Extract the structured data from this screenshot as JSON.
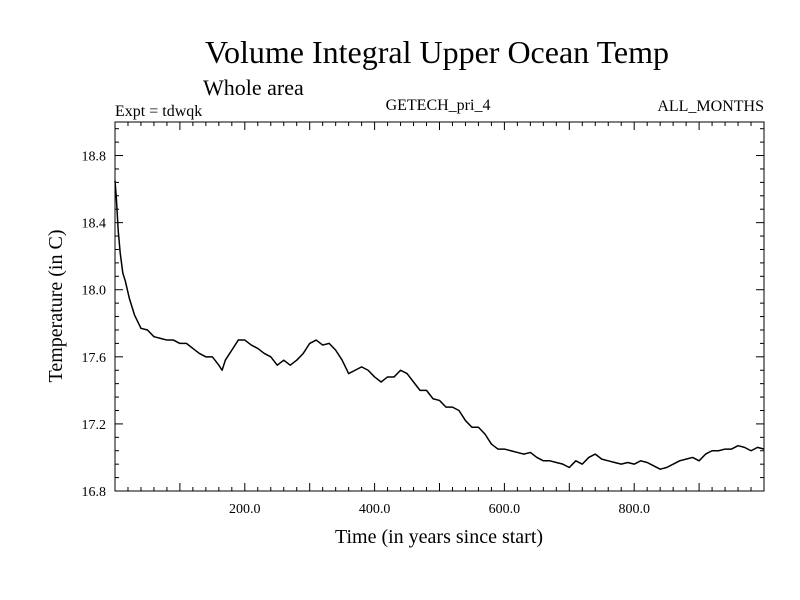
{
  "chart_data": {
    "type": "line",
    "title": "Volume Integral Upper Ocean Temp",
    "subtitle": "Whole area",
    "left_label": "Expt = tdwqk",
    "center_label": "GETECH_pri_4",
    "right_label": "ALL_MONTHS",
    "xlabel": "Time (in years since start)",
    "ylabel": "Temperature (in C)",
    "xlim": [
      0,
      1000
    ],
    "ylim": [
      16.8,
      19.0
    ],
    "xticks": [
      {
        "value": 200,
        "label": "200.0"
      },
      {
        "value": 400,
        "label": "400.0"
      },
      {
        "value": 600,
        "label": "600.0"
      },
      {
        "value": 800,
        "label": "800.0"
      }
    ],
    "yticks": [
      {
        "value": 16.8,
        "label": "16.8"
      },
      {
        "value": 17.2,
        "label": "17.2"
      },
      {
        "value": 17.6,
        "label": "17.6"
      },
      {
        "value": 18.0,
        "label": "18.0"
      },
      {
        "value": 18.4,
        "label": "18.4"
      },
      {
        "value": 18.8,
        "label": "18.8"
      }
    ],
    "series": [
      {
        "name": "tdwqk",
        "color": "#000000",
        "x": [
          0,
          2,
          5,
          8,
          12,
          16,
          22,
          30,
          40,
          50,
          60,
          70,
          80,
          90,
          100,
          110,
          120,
          130,
          140,
          150,
          160,
          165,
          170,
          180,
          190,
          200,
          210,
          220,
          230,
          240,
          250,
          260,
          270,
          280,
          290,
          300,
          310,
          320,
          330,
          340,
          350,
          360,
          370,
          380,
          390,
          400,
          410,
          420,
          430,
          440,
          450,
          460,
          470,
          480,
          490,
          500,
          510,
          520,
          530,
          540,
          550,
          560,
          570,
          580,
          590,
          600,
          610,
          620,
          630,
          640,
          650,
          660,
          670,
          680,
          690,
          700,
          710,
          720,
          730,
          740,
          750,
          760,
          770,
          780,
          790,
          800,
          810,
          820,
          830,
          840,
          850,
          860,
          870,
          880,
          890,
          900,
          910,
          920,
          930,
          940,
          950,
          960,
          970,
          980,
          990,
          1000
        ],
        "y": [
          18.65,
          18.55,
          18.35,
          18.22,
          18.1,
          18.05,
          17.95,
          17.85,
          17.77,
          17.76,
          17.72,
          17.71,
          17.7,
          17.7,
          17.68,
          17.68,
          17.65,
          17.62,
          17.6,
          17.6,
          17.55,
          17.52,
          17.58,
          17.64,
          17.7,
          17.7,
          17.67,
          17.65,
          17.62,
          17.6,
          17.55,
          17.58,
          17.55,
          17.58,
          17.62,
          17.68,
          17.7,
          17.67,
          17.68,
          17.64,
          17.58,
          17.5,
          17.52,
          17.54,
          17.52,
          17.48,
          17.45,
          17.48,
          17.48,
          17.52,
          17.5,
          17.45,
          17.4,
          17.4,
          17.35,
          17.34,
          17.3,
          17.3,
          17.28,
          17.22,
          17.18,
          17.18,
          17.14,
          17.08,
          17.05,
          17.05,
          17.04,
          17.03,
          17.02,
          17.03,
          17.0,
          16.98,
          16.98,
          16.97,
          16.96,
          16.94,
          16.98,
          16.96,
          17.0,
          17.02,
          16.99,
          16.98,
          16.97,
          16.96,
          16.97,
          16.96,
          16.98,
          16.97,
          16.95,
          16.93,
          16.94,
          16.96,
          16.98,
          16.99,
          17.0,
          16.98,
          17.02,
          17.04,
          17.04,
          17.05,
          17.05,
          17.07,
          17.06,
          17.04,
          17.06,
          17.05
        ]
      }
    ]
  }
}
